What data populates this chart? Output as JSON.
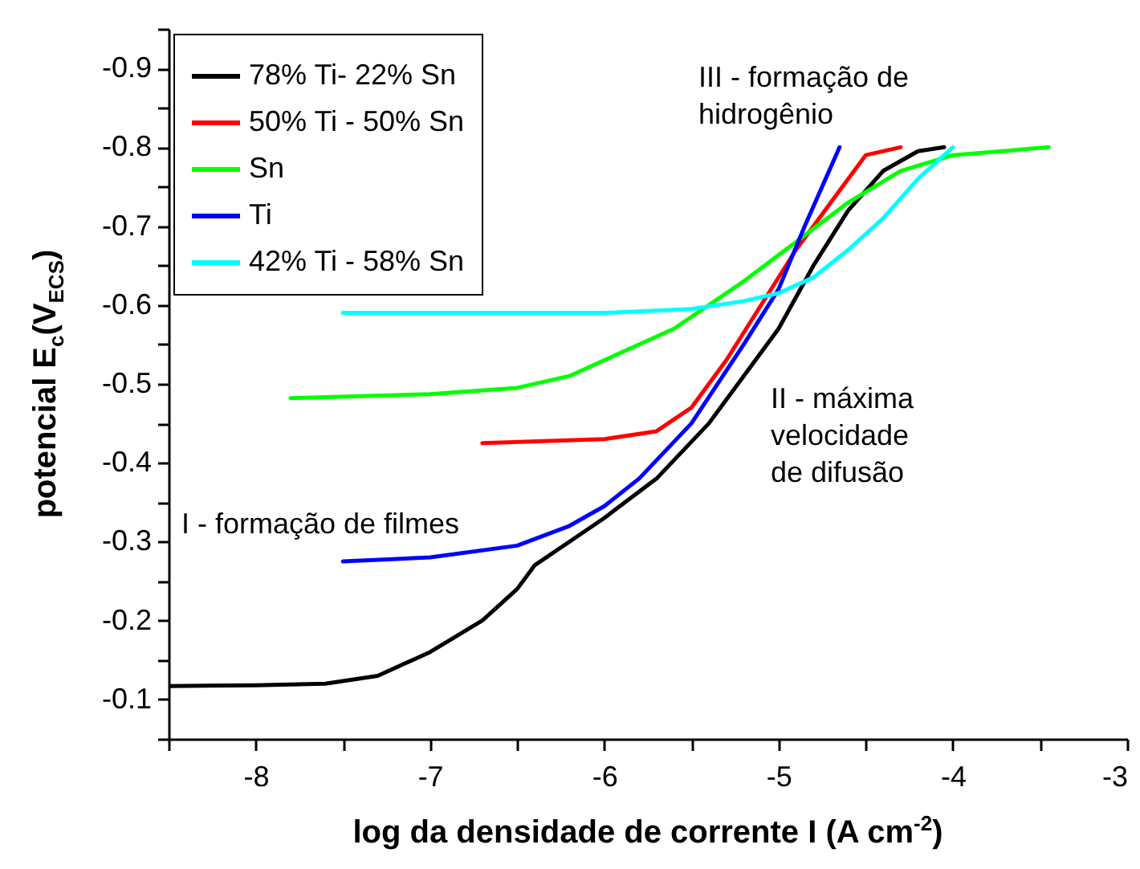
{
  "chart_data": {
    "type": "line",
    "xlabel": "log da densidade de corrente I (A cm$^{-2}$)",
    "ylabel": "potencial E$_{c}$(V$_{ECS}$)",
    "xlim": [
      -8.5,
      -3
    ],
    "ylim": [
      -0.05,
      -0.95
    ],
    "xticks": [
      {
        "value": -8.5,
        "label": null
      },
      -8,
      {
        "value": -7.5,
        "label": null
      },
      -7,
      {
        "value": -6.5,
        "label": null
      },
      -6,
      {
        "value": -5.5,
        "label": null
      },
      -5,
      {
        "value": -4.5,
        "label": null
      },
      -4,
      {
        "value": -3.5,
        "label": null
      },
      -3
    ],
    "yticks": [
      {
        "value": -0.05,
        "label": null
      },
      -0.1,
      {
        "value": -0.15,
        "label": null
      },
      -0.2,
      {
        "value": -0.25,
        "label": null
      },
      -0.3,
      {
        "value": -0.35,
        "label": null
      },
      -0.4,
      {
        "value": -0.45,
        "label": null
      },
      -0.5,
      {
        "value": -0.55,
        "label": null
      },
      -0.6,
      {
        "value": -0.65,
        "label": null
      },
      -0.7,
      {
        "value": -0.75,
        "label": null
      },
      -0.8,
      {
        "value": -0.85,
        "label": null
      },
      -0.9,
      {
        "value": -0.95,
        "label": null
      }
    ],
    "legend": "top left",
    "grid": false,
    "annotations": [
      "III - formação de\nhidrogênio",
      "II - máxima\nvelocidade\nde difusão",
      "I - formação de filmes"
    ],
    "series": [
      {
        "name": "78% Ti- 22% Sn",
        "color": "#000000",
        "x": [
          -8.5,
          -8,
          -7.6,
          -7.3,
          -7,
          -6.7,
          -6.5,
          -6.4,
          -6.2,
          -6,
          -5.7,
          -5.4,
          -5.2,
          -5,
          -4.8,
          -4.6,
          -4.4,
          -4.2,
          -4.05
        ],
        "values": [
          -0.117,
          -0.118,
          -0.12,
          -0.13,
          -0.16,
          -0.2,
          -0.24,
          -0.27,
          -0.3,
          -0.33,
          -0.38,
          -0.45,
          -0.51,
          -0.57,
          -0.65,
          -0.72,
          -0.77,
          -0.795,
          -0.8
        ]
      },
      {
        "name": "50% Ti - 50% Sn",
        "color": "#ff0000",
        "x": [
          -6.7,
          -6,
          -5.7,
          -5.5,
          -5.3,
          -5.1,
          -4.9,
          -4.7,
          -4.5,
          -4.3
        ],
        "values": [
          -0.425,
          -0.43,
          -0.44,
          -0.47,
          -0.53,
          -0.6,
          -0.67,
          -0.73,
          -0.79,
          -0.8
        ]
      },
      {
        "name": "Sn",
        "color": "#00ff00",
        "x": [
          -7.8,
          -7,
          -6.5,
          -6.2,
          -6,
          -5.6,
          -5.2,
          -4.9,
          -4.6,
          -4.3,
          -4,
          -3.45
        ],
        "values": [
          -0.482,
          -0.487,
          -0.495,
          -0.51,
          -0.53,
          -0.57,
          -0.63,
          -0.68,
          -0.73,
          -0.77,
          -0.79,
          -0.8
        ]
      },
      {
        "name": "Ti",
        "color": "#0000ff",
        "x": [
          -7.5,
          -7,
          -6.5,
          -6.2,
          -6,
          -5.8,
          -5.5,
          -5.2,
          -5,
          -4.85,
          -4.65
        ],
        "values": [
          -0.275,
          -0.28,
          -0.295,
          -0.32,
          -0.345,
          -0.38,
          -0.45,
          -0.55,
          -0.62,
          -0.7,
          -0.8
        ]
      },
      {
        "name": "42% Ti - 58% Sn",
        "color": "#00ffff",
        "x": [
          -7.5,
          -6,
          -5.5,
          -5.2,
          -5,
          -4.8,
          -4.6,
          -4.4,
          -4.2,
          -4.05,
          -4
        ],
        "values": [
          -0.59,
          -0.59,
          -0.595,
          -0.605,
          -0.615,
          -0.635,
          -0.67,
          -0.71,
          -0.76,
          -0.79,
          -0.8
        ]
      }
    ]
  }
}
